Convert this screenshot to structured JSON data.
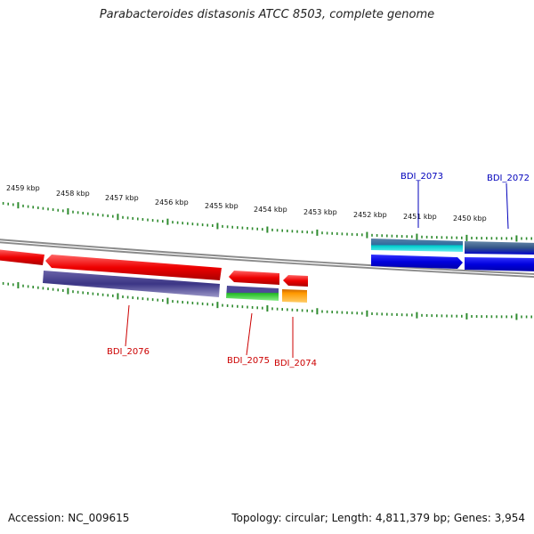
{
  "title": "Parabacteroides distasonis ATCC 8503, complete genome",
  "footer": {
    "accession": "Accession: NC_009615",
    "summary": "Topology: circular; Length: 4,811,379 bp; Genes: 3,954"
  },
  "colors": {
    "backbone": "#888888",
    "tick": "#2e8b2e",
    "forward_label": "#0000bb",
    "reverse_label": "#cc0000"
  },
  "ruler_labels": [
    "2459 kbp",
    "2458 kbp",
    "2457 kbp",
    "2456 kbp",
    "2455 kbp",
    "2454 kbp",
    "2453 kbp",
    "2452 kbp",
    "2451 kbp",
    "2450 kbp"
  ],
  "genes": [
    {
      "label": "BDI_2076",
      "strand": "reverse"
    },
    {
      "label": "BDI_2075",
      "strand": "reverse"
    },
    {
      "label": "BDI_2074",
      "strand": "reverse"
    },
    {
      "label": "BDI_2073",
      "strand": "forward"
    },
    {
      "label": "BDI_2072",
      "strand": "forward"
    }
  ]
}
